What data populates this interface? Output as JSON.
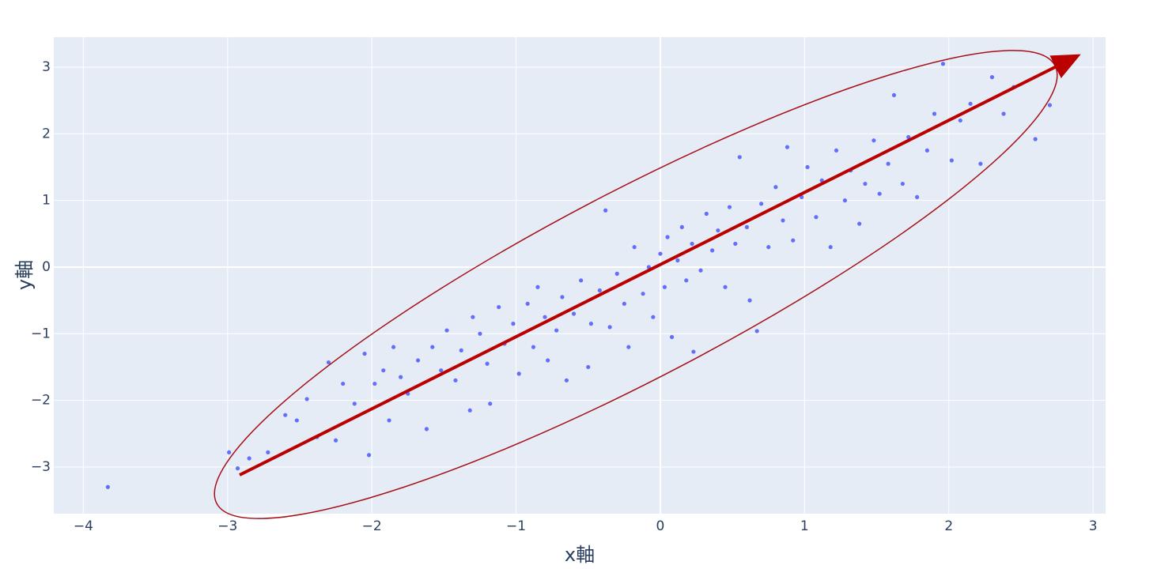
{
  "chart_data": {
    "type": "scatter",
    "x_label": "x軸",
    "y_label": "y軸",
    "color": "#636efa",
    "grid": true,
    "xlim": [
      -4.205,
      3.087
    ],
    "ylim": [
      -3.7,
      3.45
    ],
    "xticks": [
      {
        "value": -4,
        "label": "−4"
      },
      {
        "value": -3,
        "label": "−3"
      },
      {
        "value": -2,
        "label": "−2"
      },
      {
        "value": -1,
        "label": "−1"
      },
      0,
      1,
      2,
      3
    ],
    "yticks": [
      {
        "value": -3,
        "label": "−3"
      },
      {
        "value": -2,
        "label": "−2"
      },
      {
        "value": -1,
        "label": "−1"
      },
      0,
      1,
      2,
      3
    ],
    "x": [
      -3.83,
      -2.99,
      -2.93,
      -2.85,
      -2.72,
      -2.6,
      -2.52,
      -2.45,
      -2.38,
      -2.3,
      -2.25,
      -2.2,
      -2.12,
      -2.05,
      -2.02,
      -1.98,
      -1.92,
      -1.88,
      -1.85,
      -1.8,
      -1.75,
      -1.68,
      -1.62,
      -1.58,
      -1.52,
      -1.48,
      -1.42,
      -1.38,
      -1.32,
      -1.3,
      -1.25,
      -1.2,
      -1.18,
      -1.12,
      -1.08,
      -1.02,
      -0.98,
      -0.92,
      -0.88,
      -0.85,
      -0.8,
      -0.78,
      -0.72,
      -0.68,
      -0.65,
      -0.6,
      -0.55,
      -0.5,
      -0.48,
      -0.42,
      -0.38,
      -0.35,
      -0.3,
      -0.25,
      -0.22,
      -0.18,
      -0.12,
      -0.08,
      -0.05,
      0.0,
      0.03,
      0.05,
      0.08,
      0.12,
      0.15,
      0.18,
      0.22,
      0.23,
      0.28,
      0.32,
      0.36,
      0.4,
      0.45,
      0.48,
      0.52,
      0.55,
      0.6,
      0.62,
      0.67,
      0.7,
      0.75,
      0.8,
      0.85,
      0.88,
      0.92,
      0.98,
      1.02,
      1.08,
      1.12,
      1.18,
      1.22,
      1.28,
      1.32,
      1.38,
      1.42,
      1.48,
      1.52,
      1.58,
      1.62,
      1.68,
      1.72,
      1.78,
      1.85,
      1.9,
      1.96,
      2.02,
      2.08,
      2.15,
      2.22,
      2.3,
      2.38,
      2.45,
      2.6,
      2.7
    ],
    "y": [
      -3.3,
      -2.78,
      -3.02,
      -2.87,
      -2.78,
      -2.22,
      -2.3,
      -1.98,
      -2.55,
      -1.43,
      -2.6,
      -1.75,
      -2.05,
      -1.3,
      -2.82,
      -1.75,
      -1.55,
      -2.3,
      -1.2,
      -1.65,
      -1.9,
      -1.4,
      -2.43,
      -1.2,
      -1.55,
      -0.95,
      -1.7,
      -1.25,
      -2.15,
      -0.75,
      -1.0,
      -1.45,
      -2.05,
      -0.6,
      -1.15,
      -0.85,
      -1.6,
      -0.55,
      -1.2,
      -0.3,
      -0.75,
      -1.4,
      -0.95,
      -0.45,
      -1.7,
      -0.7,
      -0.2,
      -1.5,
      -0.85,
      -0.35,
      0.85,
      -0.9,
      -0.1,
      -0.55,
      -1.2,
      0.3,
      -0.4,
      0.0,
      -0.75,
      0.2,
      -0.3,
      0.45,
      -1.05,
      0.1,
      0.6,
      -0.2,
      0.35,
      -1.27,
      -0.05,
      0.8,
      0.25,
      0.55,
      -0.3,
      0.9,
      0.35,
      1.65,
      0.6,
      -0.5,
      -0.96,
      0.95,
      0.3,
      1.2,
      0.7,
      1.8,
      0.4,
      1.05,
      1.5,
      0.75,
      1.3,
      0.3,
      1.75,
      1.0,
      1.45,
      0.65,
      1.25,
      1.9,
      1.1,
      1.55,
      2.58,
      1.25,
      1.95,
      1.05,
      1.75,
      2.3,
      3.05,
      1.6,
      2.2,
      2.45,
      1.55,
      2.85,
      2.3,
      2.7,
      1.92,
      2.43
    ]
  }
}
